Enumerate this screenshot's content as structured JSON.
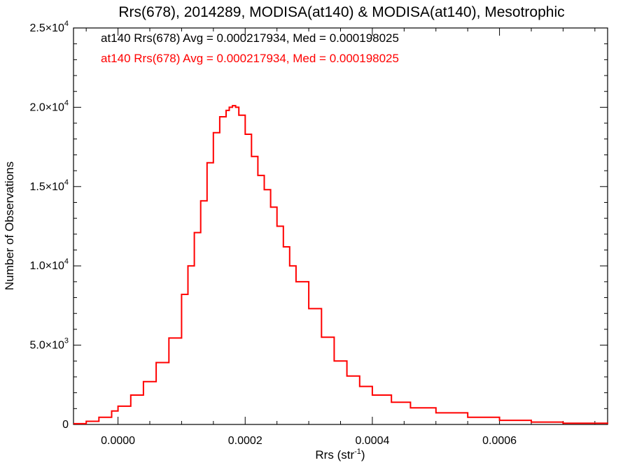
{
  "chart_data": {
    "type": "histogram",
    "title": "Rrs(678), 2014289, MODISA(at140) & MODISA(at140), Mesotrophic",
    "xlabel_base": "Rrs (str",
    "xlabel_sup": "-1",
    "xlabel_end": ")",
    "ylabel": "Number of Observations",
    "xlim": [
      -7e-05,
      0.00077
    ],
    "ylim": [
      0,
      25000
    ],
    "grid": false,
    "x_ticks": [
      {
        "value": 0.0,
        "label": "0.0000"
      },
      {
        "value": 0.0002,
        "label": "0.0002"
      },
      {
        "value": 0.0004,
        "label": "0.0004"
      },
      {
        "value": 0.0006,
        "label": "0.0006"
      }
    ],
    "x_minor_ticks": [
      -5e-05,
      5e-05,
      0.0001,
      0.00015,
      0.00025,
      0.0003,
      0.00035,
      0.00045,
      0.0005,
      0.00055,
      0.00065,
      0.0007,
      0.00075
    ],
    "y_ticks": [
      {
        "value": 0,
        "mant": "0",
        "exp": ""
      },
      {
        "value": 5000,
        "mant": "5.0×10",
        "exp": "3"
      },
      {
        "value": 10000,
        "mant": "1.0×10",
        "exp": "4"
      },
      {
        "value": 15000,
        "mant": "1.5×10",
        "exp": "4"
      },
      {
        "value": 20000,
        "mant": "2.0×10",
        "exp": "4"
      },
      {
        "value": 25000,
        "mant": "2.5×10",
        "exp": "4"
      }
    ],
    "y_minor_ticks": [
      1000,
      2000,
      3000,
      4000,
      6000,
      7000,
      8000,
      9000,
      11000,
      12000,
      13000,
      14000,
      16000,
      17000,
      18000,
      19000,
      21000,
      22000,
      23000,
      24000
    ],
    "legend": [
      {
        "text": "at140 Rrs(678) Avg = 0.000217934, Med = 0.000198025",
        "color": "#000000"
      },
      {
        "text": "at140 Rrs(678) Avg = 0.000217934, Med = 0.000198025",
        "color": "#ff0000"
      }
    ],
    "series": [
      {
        "color": "#ff0000",
        "x": [
          -7e-05,
          -5e-05,
          -3e-05,
          -1e-05,
          0.0,
          2e-05,
          4e-05,
          6e-05,
          8e-05,
          0.0001,
          0.00011,
          0.00012,
          0.00013,
          0.00014,
          0.00015,
          0.00016,
          0.00017,
          0.000175,
          0.00018,
          0.000185,
          0.00019,
          0.0002,
          0.00021,
          0.00022,
          0.00023,
          0.00024,
          0.00025,
          0.00026,
          0.00027,
          0.00028,
          0.0003,
          0.00032,
          0.00034,
          0.00036,
          0.00038,
          0.0004,
          0.00043,
          0.00046,
          0.0005,
          0.00055,
          0.0006,
          0.00065,
          0.0007,
          0.00077
        ],
        "y": [
          50,
          200,
          450,
          850,
          1150,
          1850,
          2700,
          3900,
          5450,
          8200,
          10000,
          12100,
          14100,
          16500,
          18400,
          19400,
          19800,
          20000,
          20100,
          20000,
          19500,
          18300,
          16900,
          15700,
          14800,
          13700,
          12500,
          11200,
          10000,
          9000,
          7300,
          5500,
          4000,
          3050,
          2400,
          1850,
          1400,
          1050,
          730,
          450,
          260,
          150,
          80,
          30
        ]
      }
    ]
  }
}
